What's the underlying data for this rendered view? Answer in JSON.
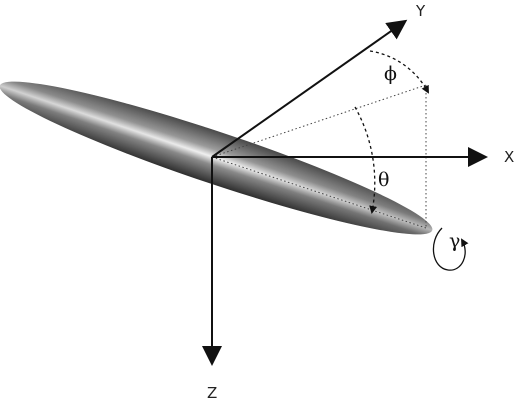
{
  "diagram": {
    "axes": {
      "x": "X",
      "y": "Y",
      "z": "Z"
    },
    "angles": {
      "phi": "ϕ",
      "theta": "θ",
      "gamma": "γ"
    }
  }
}
